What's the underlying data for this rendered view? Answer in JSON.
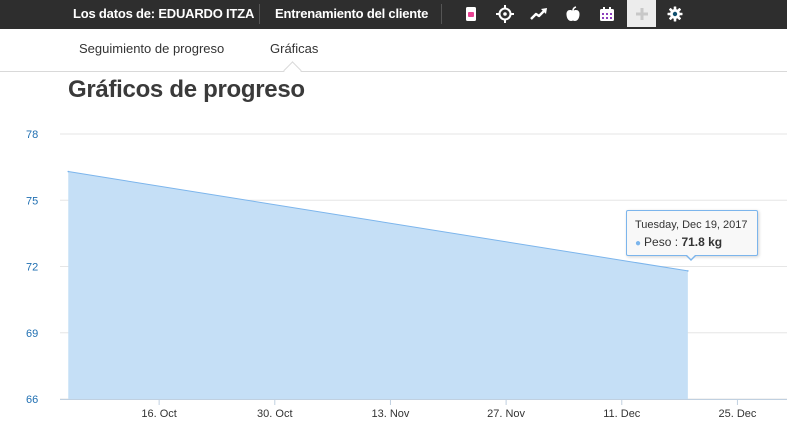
{
  "topbar": {
    "client_label": "Los datos de: EDUARDO ITZA",
    "training_label": "Entrenamiento del cliente",
    "apps": [
      {
        "name": "document-icon",
        "color": "#e84393"
      },
      {
        "name": "target-icon",
        "color": "#1b8fc9"
      },
      {
        "name": "trend-up-icon",
        "color": "#e0202a"
      },
      {
        "name": "apple-icon",
        "color": "#5cc22f"
      },
      {
        "name": "calendar-icon",
        "color": "#8e3fbd"
      },
      {
        "name": "plus-icon",
        "color": "#ececec"
      },
      {
        "name": "gear-icon",
        "color": "#0f4f6e"
      }
    ]
  },
  "subnav": {
    "tabs": [
      {
        "label": "Seguimiento de progreso"
      },
      {
        "label": "Gráficas"
      }
    ]
  },
  "main": {
    "title": "Gráficos de progreso"
  },
  "colors": {
    "series_line": "#7cb5ec",
    "series_fill": "#c5dff6",
    "ytick_text": "#1f6fb2",
    "xtick_text": "#333333",
    "grid": "#e6e6e6"
  },
  "tooltip": {
    "date": "Tuesday, Dec 19, 2017",
    "series_name": "Peso",
    "separator": ":",
    "value_text": "71.8 kg"
  },
  "chart_data": {
    "type": "area",
    "title": "",
    "xlabel": "",
    "ylabel": "",
    "ylim": [
      66,
      78
    ],
    "yticks": [
      66,
      69,
      72,
      75,
      78
    ],
    "xticks": [
      {
        "label": "16. Oct",
        "date": "2017-10-16"
      },
      {
        "label": "30. Oct",
        "date": "2017-10-30"
      },
      {
        "label": "13. Nov",
        "date": "2017-11-13"
      },
      {
        "label": "27. Nov",
        "date": "2017-11-27"
      },
      {
        "label": "11. Dec",
        "date": "2017-12-11"
      },
      {
        "label": "25. Dec",
        "date": "2017-12-25"
      }
    ],
    "xlim": [
      "2017-10-04",
      "2017-12-31"
    ],
    "series": [
      {
        "name": "Peso",
        "unit": "kg",
        "x": [
          "2017-10-05",
          "2017-12-19"
        ],
        "y": [
          76.3,
          71.8
        ]
      }
    ]
  }
}
